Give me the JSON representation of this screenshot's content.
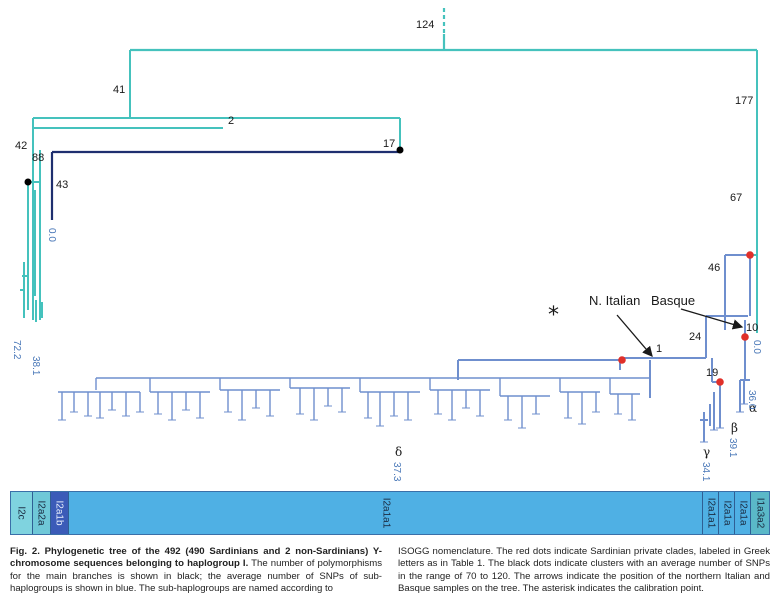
{
  "tree": {
    "branch_labels": {
      "root": "124",
      "b41": "41",
      "b177": "177",
      "b2": "2",
      "b42": "42",
      "b88": "88",
      "b17": "17",
      "b43": "43",
      "b67": "67",
      "b46": "46",
      "b24": "24",
      "b10": "10",
      "b19": "19",
      "b1": "1"
    },
    "sub_averages": {
      "i2c": "72.2",
      "i2a2a": "38.1",
      "i2a1b": "0.0",
      "i1a3a2": "0.0",
      "alpha": "36.0",
      "beta": "39.1",
      "gamma": "34.1",
      "delta": "37.3"
    },
    "greek": {
      "alpha": "α",
      "beta": "β",
      "gamma": "γ",
      "delta": "δ"
    },
    "annotations": {
      "n_italian": "N. Italian",
      "basque": "Basque",
      "asterisk": "*"
    },
    "colors": {
      "teal": "#45c2bd",
      "blue": "#6f8fce",
      "navy": "#1f2f6f",
      "red_dot": "#e0302a",
      "black_dot": "#000000"
    }
  },
  "haplogroup_bar": [
    {
      "label": "I2c",
      "color": "#7fd3df"
    },
    {
      "label": "I2a2a",
      "color": "#6fc8d8"
    },
    {
      "label": "I2a1b",
      "color": "#3b5bb8"
    },
    {
      "label": "I2a1a1",
      "color": "#4fb0e4"
    },
    {
      "label": "I2a1a1",
      "color": "#4fb0e4"
    },
    {
      "label": "I2a1a",
      "color": "#4fb0e4"
    },
    {
      "label": "I2a1a",
      "color": "#4fb0e4"
    },
    {
      "label": "I1a3a2",
      "color": "#5ab8c8"
    }
  ],
  "caption": {
    "bold": "Fig. 2. Phylogenetic tree of the 492 (490 Sardinians and 2 non-Sardinians) Y-chromosome sequences belonging to haplogroup I.",
    "left_rest": " The number of polymorphisms for the main branches is shown in black; the average number of SNPs of sub-haplogroups is shown in blue. The sub-haplogroups are named according to",
    "right": "ISOGG nomenclature. The red dots indicate Sardinian private clades, labeled in Greek letters as in Table 1. The black dots indicate clusters with an average number of SNPs in the range of 70 to 120. The arrows indicate the position of the northern Italian and Basque samples on the tree. The asterisk indicates the calibration point."
  }
}
